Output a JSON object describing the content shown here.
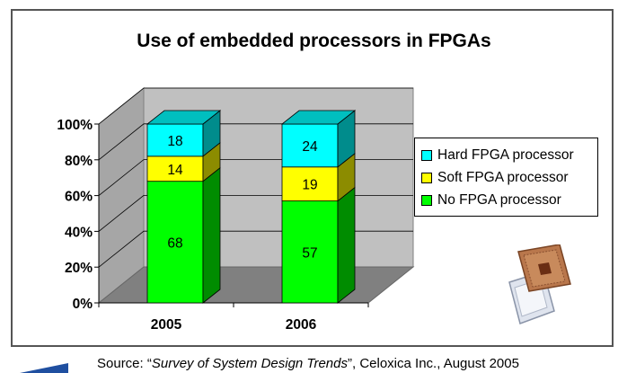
{
  "chart_data": {
    "type": "bar",
    "stacked": true,
    "three_d": true,
    "title": "Use of embedded processors in FPGAs",
    "categories": [
      "2005",
      "2006"
    ],
    "series": [
      {
        "name": "No FPGA processor",
        "values": [
          68,
          57
        ],
        "color": "#00ff00"
      },
      {
        "name": "Soft FPGA processor",
        "values": [
          14,
          19
        ],
        "color": "#ffff00"
      },
      {
        "name": "Hard FPGA processor",
        "values": [
          18,
          24
        ],
        "color": "#00ffff"
      }
    ],
    "yticks": [
      "0%",
      "20%",
      "40%",
      "60%",
      "80%",
      "100%"
    ],
    "ylim": [
      0,
      100
    ],
    "grid": true,
    "legend_position": "right"
  },
  "legend": [
    {
      "label": "Hard FPGA processor",
      "color": "#00ffff"
    },
    {
      "label": "Soft FPGA processor",
      "color": "#ffff00"
    },
    {
      "label": "No FPGA processor",
      "color": "#00ff00"
    }
  ],
  "source": {
    "prefix": "Source: “",
    "title": "Survey of System Design Trends",
    "suffix": "”, Celoxica Inc., August 2005"
  },
  "decorations": {
    "chip_image": "chip-icon"
  }
}
